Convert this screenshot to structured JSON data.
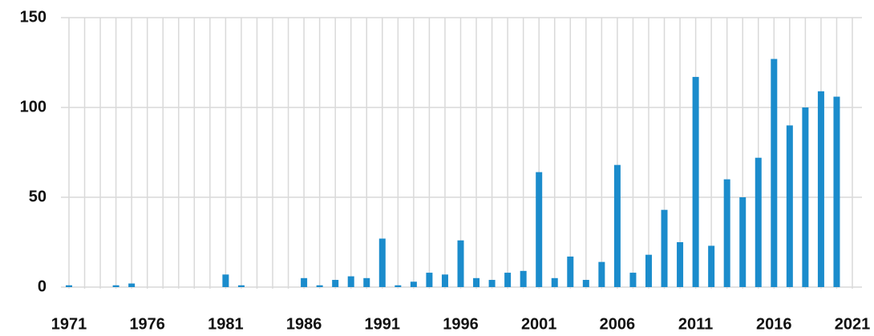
{
  "chart_data": {
    "type": "bar",
    "categories": [
      "1971",
      null,
      null,
      null,
      null,
      "1976",
      null,
      null,
      null,
      null,
      "1981",
      null,
      null,
      null,
      null,
      "1986",
      null,
      null,
      null,
      null,
      "1991",
      null,
      null,
      null,
      null,
      "1996",
      null,
      null,
      null,
      null,
      "2001",
      null,
      null,
      null,
      null,
      "2006",
      null,
      null,
      null,
      null,
      "2011",
      null,
      null,
      null,
      null,
      "2016",
      null,
      null,
      null,
      null,
      "2021"
    ],
    "values": [
      1,
      0,
      0,
      1,
      2,
      0,
      0,
      0,
      0,
      0,
      7,
      1,
      0,
      0,
      0,
      5,
      1,
      4,
      6,
      5,
      27,
      1,
      3,
      8,
      7,
      26,
      5,
      4,
      8,
      9,
      64,
      5,
      17,
      4,
      14,
      68,
      8,
      18,
      43,
      25,
      117,
      23,
      60,
      50,
      72,
      127,
      90,
      100,
      109,
      106,
      null
    ],
    "color": "#1b8ccc",
    "ylim": [
      0,
      150
    ],
    "yticks": [
      0,
      50,
      100,
      150
    ],
    "grid": true
  }
}
